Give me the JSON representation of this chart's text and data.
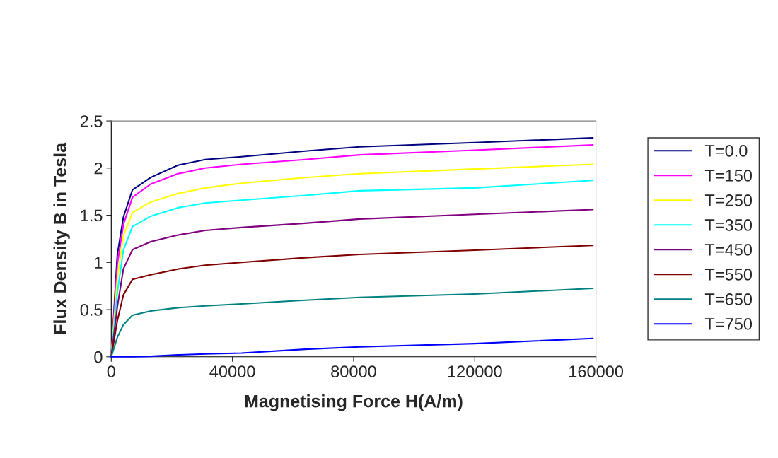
{
  "chart_data": {
    "type": "line",
    "xlabel": "Magnetising Force H(A/m)",
    "ylabel": "Flux Density B in Tesla",
    "x": [
      0,
      2000,
      4000,
      7000,
      13000,
      22000,
      31000,
      43000,
      64000,
      82000,
      120000,
      159000
    ],
    "series": [
      {
        "name": "T=0.0",
        "color": "#000080",
        "values": [
          0,
          1.08,
          1.48,
          1.77,
          1.9,
          2.03,
          2.09,
          2.12,
          2.18,
          2.225,
          2.27,
          2.32
        ]
      },
      {
        "name": "T=150",
        "color": "#ff00ff",
        "values": [
          0,
          0.98,
          1.4,
          1.69,
          1.83,
          1.94,
          2.0,
          2.04,
          2.09,
          2.14,
          2.19,
          2.245
        ]
      },
      {
        "name": "T=250",
        "color": "#ffff00",
        "values": [
          0,
          0.83,
          1.28,
          1.53,
          1.64,
          1.73,
          1.79,
          1.84,
          1.9,
          1.94,
          1.99,
          2.04
        ]
      },
      {
        "name": "T=350",
        "color": "#00ffff",
        "values": [
          0,
          0.68,
          1.13,
          1.38,
          1.49,
          1.58,
          1.63,
          1.66,
          1.71,
          1.76,
          1.79,
          1.87
        ]
      },
      {
        "name": "T=450",
        "color": "#800080",
        "values": [
          0,
          0.53,
          0.93,
          1.135,
          1.22,
          1.29,
          1.34,
          1.37,
          1.415,
          1.46,
          1.51,
          1.56
        ]
      },
      {
        "name": "T=550",
        "color": "#800000",
        "values": [
          0,
          0.38,
          0.655,
          0.82,
          0.87,
          0.93,
          0.97,
          1.0,
          1.05,
          1.085,
          1.13,
          1.18
        ]
      },
      {
        "name": "T=650",
        "color": "#008080",
        "values": [
          0,
          0.205,
          0.34,
          0.44,
          0.485,
          0.52,
          0.54,
          0.56,
          0.6,
          0.63,
          0.665,
          0.725
        ]
      },
      {
        "name": "T=750",
        "color": "#0000ff",
        "values": [
          0,
          0,
          0,
          0,
          0.005,
          0.02,
          0.03,
          0.04,
          0.08,
          0.105,
          0.14,
          0.195
        ]
      }
    ],
    "xlim": [
      0,
      160000
    ],
    "xticks": [
      0,
      40000,
      80000,
      120000,
      160000
    ],
    "ylim": [
      0,
      2.5
    ],
    "yticks": [
      0,
      {
        "value": 0.5,
        "label": "0.5"
      },
      1,
      {
        "value": 1.5,
        "label": "1.5"
      },
      2,
      {
        "value": 2.5,
        "label": "2.5"
      }
    ],
    "grid": false,
    "legend": "right",
    "marker": "none",
    "line_style": "solid"
  }
}
